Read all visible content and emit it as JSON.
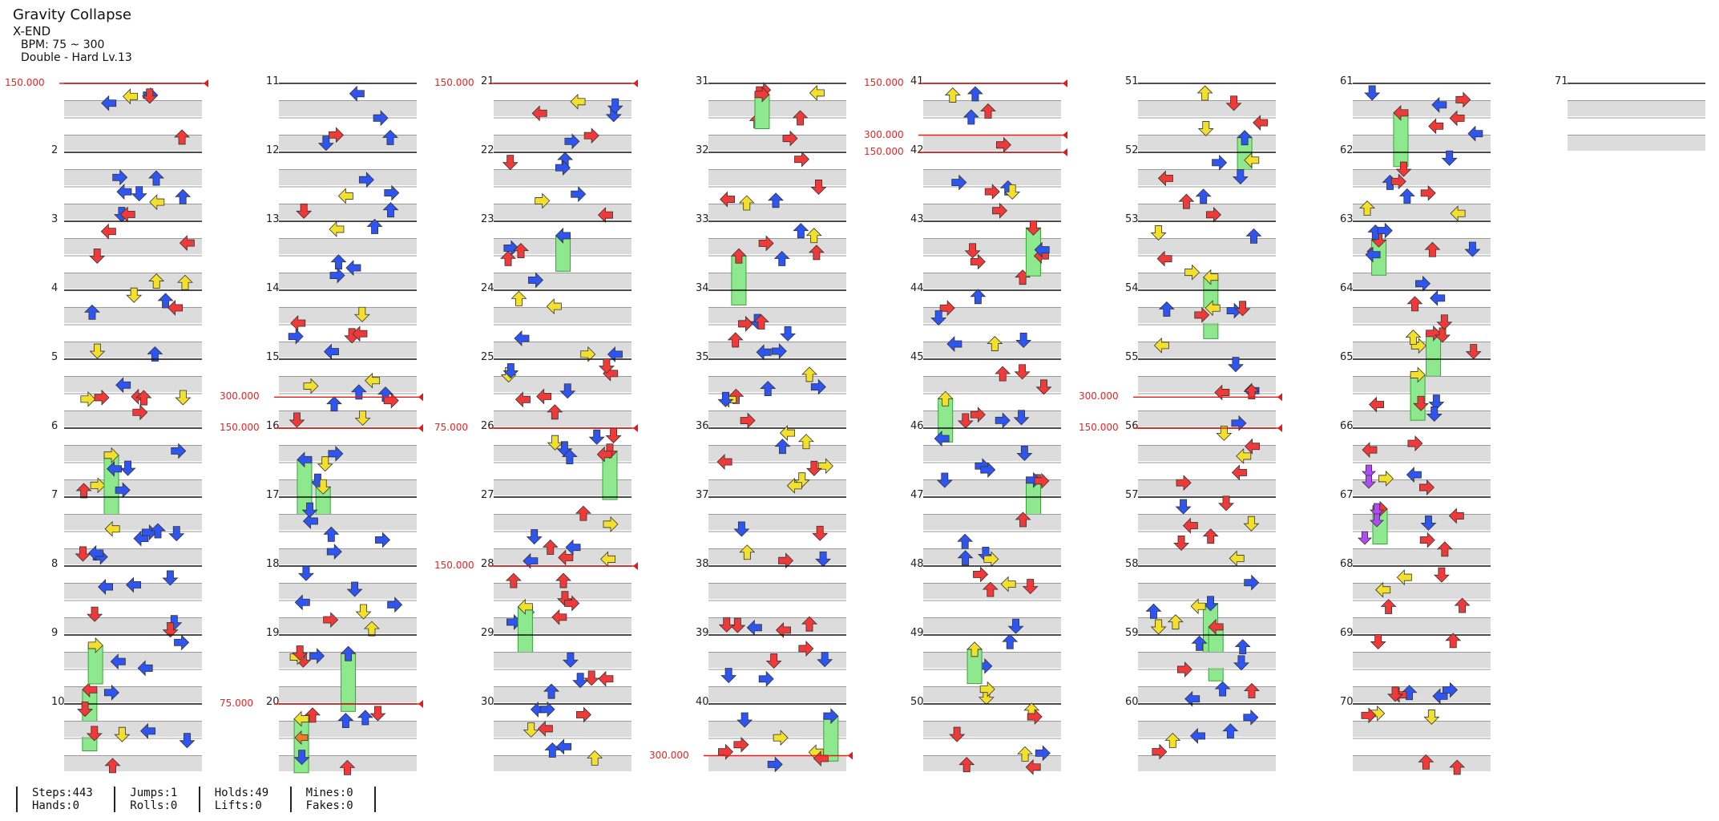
{
  "song": {
    "title": "Gravity Collapse",
    "subtitle": "X-END",
    "bpm": "BPM: 75 ~ 300",
    "chart": "Double - Hard Lv.13"
  },
  "colors": {
    "red": "#f03a3a",
    "blue": "#2f55f0",
    "yellow": "#f3e02c",
    "green": "#8ee88e",
    "purple": "#b04cf5",
    "orange": "#f07a2a",
    "lane_gray": "#dcdcdc",
    "bpm_line": "#e21b1b"
  },
  "measures": [
    1,
    11,
    21,
    31,
    41,
    51,
    61,
    71
  ],
  "measure_numbers": [
    [
      "",
      "2",
      "3",
      "4",
      "5",
      "6",
      "7",
      "8",
      "9",
      "10"
    ],
    [
      "11",
      "12",
      "13",
      "14",
      "15",
      "16",
      "17",
      "18",
      "19",
      "20"
    ],
    [
      "21",
      "22",
      "23",
      "24",
      "25",
      "26",
      "27",
      "28",
      "29",
      "30"
    ],
    [
      "31",
      "32",
      "33",
      "34",
      "35",
      "36",
      "37",
      "38",
      "39",
      "40"
    ],
    [
      "41",
      "42",
      "43",
      "44",
      "45",
      "46",
      "47",
      "48",
      "49",
      "50"
    ],
    [
      "51",
      "52",
      "53",
      "54",
      "55",
      "56",
      "57",
      "58",
      "59",
      "60"
    ],
    [
      "61",
      "62",
      "63",
      "64",
      "65",
      "66",
      "67",
      "68",
      "69",
      "70"
    ],
    [
      "71"
    ]
  ],
  "bpm_changes": [
    {
      "label": "150.000"
    },
    {
      "label": "300.000"
    },
    {
      "label": "150.000"
    },
    {
      "label": "75.000"
    },
    {
      "label": "150.000"
    },
    {
      "label": "75.000"
    },
    {
      "label": "150.000"
    },
    {
      "label": "300.000"
    },
    {
      "label": "150.000"
    },
    {
      "label": "300.000"
    },
    {
      "label": "150.000"
    },
    {
      "label": "300.000"
    },
    {
      "label": "150.000"
    }
  ],
  "stats": {
    "steps": "Steps:443",
    "jumps": "Jumps:1",
    "holds": "Holds:49",
    "mines": "Mines:0",
    "hands": "Hands:0",
    "rolls": "Rolls:0",
    "lifts": "Lifts:0",
    "fakes": "Fakes:0"
  }
}
